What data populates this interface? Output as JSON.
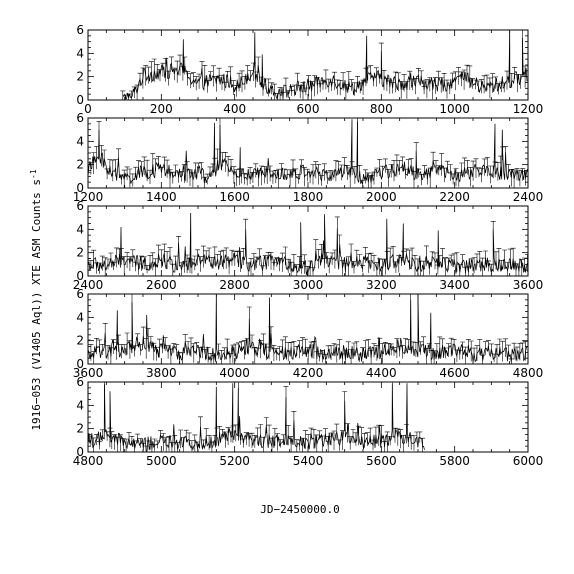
{
  "figure": {
    "xlabel": "JD−2450000.0",
    "ylabel": "1916−053 (V1405 Aql)) XTE ASM Counts s",
    "ylabel_superscript": "-1"
  },
  "chart_data": [
    {
      "type": "line",
      "xlim": [
        0,
        1200
      ],
      "ylim": [
        0,
        6
      ],
      "x_ticks": [
        0,
        200,
        400,
        600,
        800,
        1000,
        1200
      ],
      "y_ticks": [
        0,
        2,
        4,
        6
      ],
      "data_range": [
        95,
        1200
      ],
      "anchors": [
        [
          95,
          0
        ],
        [
          125,
          0.5
        ],
        [
          150,
          2.1
        ],
        [
          200,
          2.4
        ],
        [
          255,
          2.6
        ],
        [
          300,
          1.4
        ],
        [
          360,
          1.8
        ],
        [
          410,
          1.2
        ],
        [
          450,
          2.6
        ],
        [
          470,
          1.5
        ],
        [
          520,
          0.6
        ],
        [
          600,
          1.2
        ],
        [
          660,
          1.8
        ],
        [
          720,
          1.0
        ],
        [
          780,
          2.0
        ],
        [
          840,
          1.4
        ],
        [
          900,
          1.6
        ],
        [
          960,
          1.2
        ],
        [
          1020,
          1.9
        ],
        [
          1080,
          1.0
        ],
        [
          1140,
          1.5
        ],
        [
          1200,
          2.2
        ]
      ],
      "spikes": [
        [
          260,
          5.2
        ],
        [
          455,
          5.8
        ],
        [
          475,
          3.9
        ],
        [
          760,
          5.5
        ],
        [
          800,
          4.2
        ],
        [
          1150,
          5.9
        ],
        [
          1185,
          5.3
        ]
      ]
    },
    {
      "type": "line",
      "xlim": [
        1200,
        2400
      ],
      "ylim": [
        0,
        6
      ],
      "x_ticks": [
        1200,
        1400,
        1600,
        1800,
        2000,
        2200,
        2400
      ],
      "y_ticks": [
        0,
        2,
        4,
        6
      ],
      "data_range": [
        1200,
        2400
      ],
      "anchors": [
        [
          1200,
          1.5
        ],
        [
          1230,
          2.8
        ],
        [
          1260,
          1.4
        ],
        [
          1300,
          0.8
        ],
        [
          1350,
          1.3
        ],
        [
          1400,
          1.6
        ],
        [
          1450,
          1.0
        ],
        [
          1500,
          1.4
        ],
        [
          1530,
          0.7
        ],
        [
          1560,
          2.1
        ],
        [
          1600,
          1.3
        ],
        [
          1650,
          1.0
        ],
        [
          1700,
          1.6
        ],
        [
          1750,
          1.1
        ],
        [
          1800,
          1.5
        ],
        [
          1850,
          1.0
        ],
        [
          1900,
          1.4
        ],
        [
          1960,
          0.8
        ],
        [
          2000,
          1.2
        ],
        [
          2060,
          1.9
        ],
        [
          2100,
          1.1
        ],
        [
          2150,
          1.6
        ],
        [
          2200,
          1.0
        ],
        [
          2260,
          1.5
        ],
        [
          2320,
          1.3
        ],
        [
          2400,
          1.1
        ]
      ],
      "spikes": [
        [
          1230,
          5.0
        ],
        [
          1545,
          5.6
        ],
        [
          1560,
          5.4
        ],
        [
          1615,
          3.5
        ],
        [
          1920,
          5.9
        ],
        [
          1935,
          5.7
        ],
        [
          2095,
          3.2
        ],
        [
          2310,
          5.5
        ],
        [
          2330,
          5.0
        ]
      ]
    },
    {
      "type": "line",
      "xlim": [
        2400,
        3600
      ],
      "ylim": [
        0,
        6
      ],
      "x_ticks": [
        2400,
        2600,
        2800,
        3000,
        3200,
        3400,
        3600
      ],
      "y_ticks": [
        0,
        2,
        4,
        6
      ],
      "data_range": [
        2400,
        3600
      ],
      "anchors": [
        [
          2400,
          1.0
        ],
        [
          2450,
          0.9
        ],
        [
          2500,
          1.4
        ],
        [
          2550,
          1.0
        ],
        [
          2600,
          1.3
        ],
        [
          2650,
          0.8
        ],
        [
          2700,
          1.5
        ],
        [
          2750,
          1.1
        ],
        [
          2800,
          1.4
        ],
        [
          2850,
          0.9
        ],
        [
          2900,
          1.3
        ],
        [
          2950,
          1.0
        ],
        [
          3000,
          0.7
        ],
        [
          3040,
          1.5
        ],
        [
          3100,
          1.0
        ],
        [
          3150,
          1.2
        ],
        [
          3200,
          0.9
        ],
        [
          3260,
          1.5
        ],
        [
          3300,
          1.0
        ],
        [
          3350,
          1.2
        ],
        [
          3400,
          0.8
        ],
        [
          3450,
          1.0
        ],
        [
          3500,
          0.9
        ],
        [
          3550,
          1.1
        ],
        [
          3600,
          0.9
        ]
      ],
      "spikes": [
        [
          2490,
          4.2
        ],
        [
          2680,
          5.4
        ],
        [
          2830,
          4.0
        ],
        [
          2980,
          4.6
        ],
        [
          3045,
          5.3
        ],
        [
          3080,
          4.1
        ],
        [
          3215,
          4.9
        ],
        [
          3260,
          4.5
        ],
        [
          3355,
          3.9
        ],
        [
          3505,
          4.0
        ]
      ]
    },
    {
      "type": "line",
      "xlim": [
        3600,
        4800
      ],
      "ylim": [
        0,
        6
      ],
      "x_ticks": [
        3600,
        3800,
        4000,
        4200,
        4400,
        4600,
        4800
      ],
      "y_ticks": [
        0,
        2,
        4,
        6
      ],
      "data_range": [
        3600,
        4800
      ],
      "anchors": [
        [
          3600,
          0.8
        ],
        [
          3650,
          1.0
        ],
        [
          3700,
          1.3
        ],
        [
          3750,
          1.8
        ],
        [
          3800,
          1.1
        ],
        [
          3850,
          0.9
        ],
        [
          3900,
          1.2
        ],
        [
          3950,
          0.8
        ],
        [
          4000,
          1.0
        ],
        [
          4050,
          1.4
        ],
        [
          4100,
          1.0
        ],
        [
          4150,
          0.8
        ],
        [
          4200,
          1.2
        ],
        [
          4250,
          0.9
        ],
        [
          4300,
          1.0
        ],
        [
          4350,
          0.8
        ],
        [
          4400,
          1.1
        ],
        [
          4450,
          1.6
        ],
        [
          4500,
          1.2
        ],
        [
          4550,
          0.9
        ],
        [
          4600,
          1.3
        ],
        [
          4650,
          0.8
        ],
        [
          4700,
          1.0
        ],
        [
          4750,
          0.8
        ],
        [
          4800,
          0.9
        ]
      ],
      "spikes": [
        [
          3680,
          4.6
        ],
        [
          3720,
          5.3
        ],
        [
          3760,
          4.2
        ],
        [
          3950,
          5.9
        ],
        [
          4040,
          3.9
        ],
        [
          4095,
          5.7
        ],
        [
          4480,
          5.5
        ],
        [
          4500,
          5.9
        ],
        [
          4535,
          4.4
        ]
      ]
    },
    {
      "type": "line",
      "xlim": [
        4800,
        6000
      ],
      "ylim": [
        0,
        6
      ],
      "x_ticks": [
        4800,
        5000,
        5200,
        5400,
        5600,
        5800,
        6000
      ],
      "y_ticks": [
        0,
        2,
        4,
        6
      ],
      "data_range": [
        4800,
        5720
      ],
      "anchors": [
        [
          4800,
          0.9
        ],
        [
          4850,
          1.3
        ],
        [
          4900,
          0.8
        ],
        [
          4950,
          0.6
        ],
        [
          5000,
          0.9
        ],
        [
          5050,
          0.7
        ],
        [
          5100,
          0.8
        ],
        [
          5150,
          1.0
        ],
        [
          5190,
          1.6
        ],
        [
          5250,
          1.1
        ],
        [
          5300,
          0.9
        ],
        [
          5350,
          1.2
        ],
        [
          5400,
          0.8
        ],
        [
          5450,
          1.0
        ],
        [
          5500,
          1.3
        ],
        [
          5550,
          0.7
        ],
        [
          5600,
          1.0
        ],
        [
          5650,
          1.4
        ],
        [
          5700,
          1.0
        ],
        [
          5720,
          0.8
        ]
      ],
      "spikes": [
        [
          4845,
          5.8
        ],
        [
          4860,
          5.2
        ],
        [
          5150,
          5.6
        ],
        [
          5195,
          5.9
        ],
        [
          5210,
          5.5
        ],
        [
          5340,
          4.7
        ],
        [
          5500,
          4.4
        ],
        [
          5630,
          5.8
        ],
        [
          5670,
          5.9
        ]
      ]
    }
  ]
}
